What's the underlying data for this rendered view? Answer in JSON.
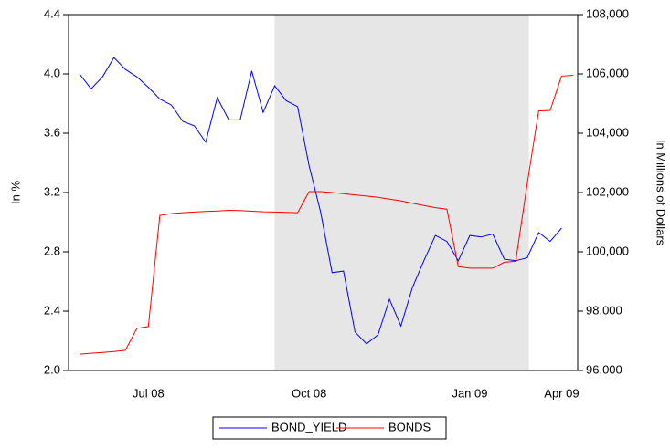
{
  "chart_data": {
    "type": "line",
    "y_label": "In %",
    "y2_label": "In Millions of Dollars",
    "categories": [
      null,
      null,
      null,
      null,
      null,
      null,
      "Jul 08",
      null,
      null,
      null,
      null,
      null,
      null,
      null,
      null,
      null,
      null,
      null,
      null,
      null,
      "Oct 08",
      null,
      null,
      null,
      null,
      null,
      null,
      null,
      null,
      null,
      null,
      null,
      null,
      null,
      "Jan 09",
      null,
      null,
      null,
      null,
      null,
      null,
      null,
      "Apr 09",
      null
    ],
    "shaded_ranges": [
      [
        17,
        39.15
      ]
    ],
    "shade_color": "#e6e6e6",
    "ylim": [
      2.0,
      4.4
    ],
    "yticks": [
      {
        "value": 2,
        "label": "2.0"
      },
      2.4,
      2.8,
      3.2,
      3.6,
      {
        "value": 4,
        "label": "4.0"
      },
      4.4
    ],
    "y2lim": [
      96000,
      108000
    ],
    "y2ticks": [
      {
        "value": 96000,
        "label": "96,000"
      },
      {
        "value": 98000,
        "label": "98,000"
      },
      {
        "value": 100000,
        "label": "100,000"
      },
      {
        "value": 102000,
        "label": "102,000"
      },
      {
        "value": 104000,
        "label": "104,000"
      },
      {
        "value": 106000,
        "label": "106,000"
      },
      {
        "value": 108000,
        "label": "108,000"
      }
    ],
    "series": [
      {
        "name": "BOND_YIELD",
        "color": "#0000ff",
        "values": [
          4.0,
          3.9,
          3.98,
          4.11,
          4.03,
          3.98,
          3.91,
          3.83,
          3.79,
          3.68,
          3.65,
          3.54,
          3.84,
          3.69,
          3.69,
          4.02,
          3.74,
          3.92,
          3.82,
          3.78,
          3.38,
          3.07,
          2.66,
          2.67,
          2.26,
          2.18,
          2.24,
          2.48,
          2.3,
          2.56,
          2.74,
          2.91,
          2.87,
          2.74,
          2.91,
          2.9,
          2.92,
          2.75,
          2.74,
          2.76,
          2.93,
          2.87,
          2.96,
          null
        ]
      },
      {
        "name": "BONDS",
        "color": "#ff0000",
        "axis": "y2",
        "values": [
          96550,
          96580,
          96610,
          96640,
          96680,
          97420,
          97480,
          101230,
          101290,
          101320,
          101340,
          101360,
          101380,
          101400,
          101390,
          101370,
          101350,
          101340,
          101330,
          101320,
          102030,
          102030,
          102000,
          101960,
          101920,
          101880,
          101840,
          101780,
          101720,
          101640,
          101560,
          101490,
          101440,
          99500,
          99450,
          99450,
          99450,
          99650,
          99680,
          102300,
          104750,
          104770,
          105930,
          105950
        ]
      }
    ]
  }
}
